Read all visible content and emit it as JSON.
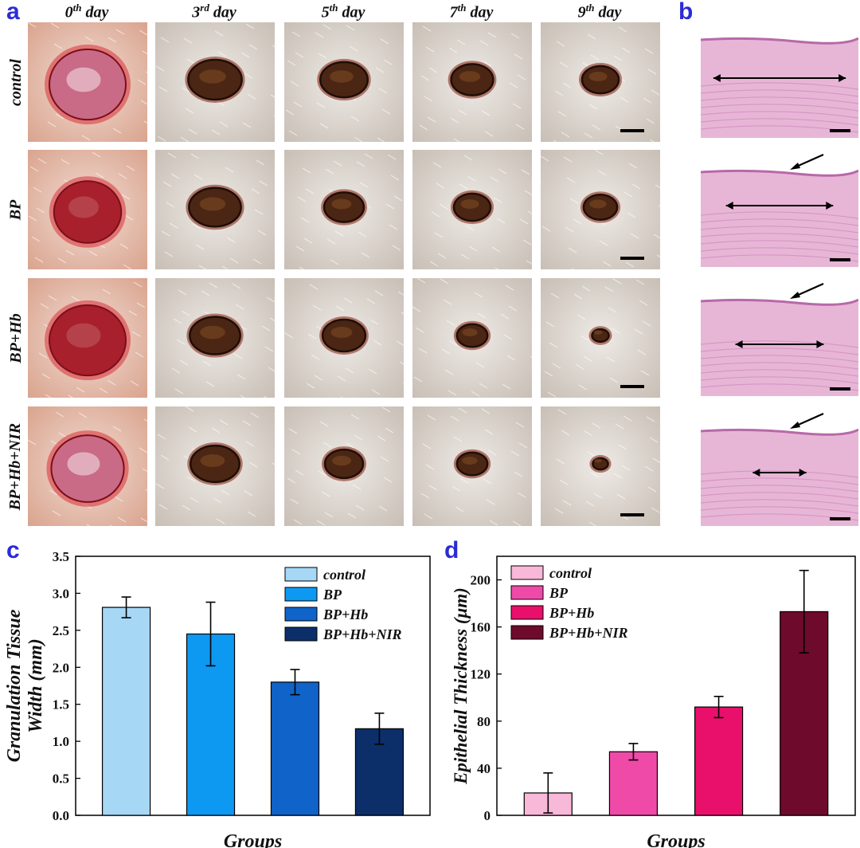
{
  "panels": {
    "a": "a",
    "b": "b",
    "c": "c",
    "d": "d"
  },
  "days": [
    {
      "num": "0",
      "suffix": "th",
      "word": " day"
    },
    {
      "num": "3",
      "suffix": "rd",
      "word": " day"
    },
    {
      "num": "5",
      "suffix": "th",
      "word": " day"
    },
    {
      "num": "7",
      "suffix": "th",
      "word": " day"
    },
    {
      "num": "9",
      "suffix": "th",
      "word": " day"
    }
  ],
  "groups": [
    "control",
    "BP",
    "BP+Hb",
    "BP+Hb+NIR"
  ],
  "wound_appearance": {
    "wound_sizes": [
      [
        1.0,
        0.7,
        0.62,
        0.55,
        0.48
      ],
      [
        0.88,
        0.68,
        0.52,
        0.48,
        0.44
      ],
      [
        1.0,
        0.66,
        0.56,
        0.4,
        0.22
      ],
      [
        0.95,
        0.64,
        0.5,
        0.4,
        0.2
      ]
    ],
    "histology_defect_widths": [
      0.84,
      0.68,
      0.56,
      0.34
    ],
    "arrow_marks": [
      false,
      true,
      true,
      true
    ]
  },
  "colors": {
    "panel_letter": "#2b2bd6",
    "chart_c": [
      "#a6d8f5",
      "#0d99f2",
      "#0f63c9",
      "#0c2f6a"
    ],
    "chart_d": [
      "#f8b8d8",
      "#f04aa8",
      "#e8106a",
      "#6e0a2c"
    ]
  },
  "chart_data": [
    {
      "type": "bar",
      "title": "",
      "categories": [
        "control",
        "BP",
        "BP+Hb",
        "BP+Hb+NIR"
      ],
      "values": [
        2.81,
        2.45,
        1.8,
        1.17
      ],
      "errors": [
        0.14,
        0.43,
        0.17,
        0.21
      ],
      "xlabel": "Groups",
      "ylabel_line1": "Granulation Tissue",
      "ylabel_line2": "Width (mm)",
      "ylim": [
        0,
        3.5
      ],
      "yticks": [
        "0.0",
        "0.5",
        "1.0",
        "1.5",
        "2.0",
        "2.5",
        "3.0",
        "3.5"
      ],
      "legend": [
        "control",
        "BP",
        "BP+Hb",
        "BP+Hb+NIR"
      ],
      "legend_position": "top-right",
      "grid": false
    },
    {
      "type": "bar",
      "title": "",
      "categories": [
        "control",
        "BP",
        "BP+Hb",
        "BP+Hb+NIR"
      ],
      "values": [
        19,
        54,
        92,
        173
      ],
      "errors": [
        17,
        7,
        9,
        35
      ],
      "xlabel": "Groups",
      "ylabel": "Epithelial Thickness (μm)",
      "ylim": [
        0,
        220
      ],
      "yticks": [
        "0",
        "40",
        "80",
        "120",
        "160",
        "200"
      ],
      "legend": [
        "control",
        "BP",
        "BP+Hb",
        "BP+Hb+NIR"
      ],
      "legend_position": "top-left",
      "grid": false
    }
  ]
}
